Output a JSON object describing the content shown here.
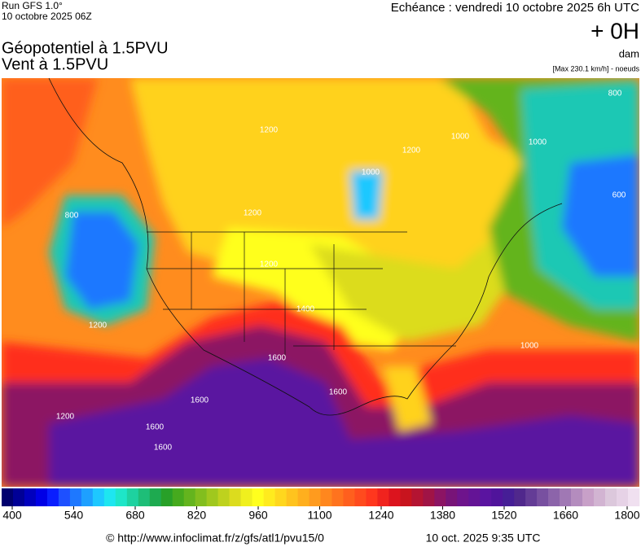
{
  "header": {
    "run": "Run GFS 1.0°",
    "date": "10 octobre 2025 06Z",
    "echeance": "Echéance : vendredi 10 octobre 2025 6h UTC",
    "lead": "+ 0H",
    "title_line1": "Géopotentiel à 1.5PVU",
    "title_line2": "Vent à 1.5PVU",
    "unit": "dam",
    "note": "[Max 230.1 km/h] - noeuds"
  },
  "map": {
    "contour_labels": [
      "1200",
      "1200",
      "1000",
      "800",
      "1000",
      "1200",
      "1200",
      "1600",
      "1600",
      "1600",
      "1600",
      "1600",
      "1200",
      "1000",
      "800",
      "600",
      "1000",
      "1200",
      "1400"
    ]
  },
  "colorbar": {
    "ticks": [
      400,
      540,
      680,
      820,
      960,
      1100,
      1240,
      1380,
      1520,
      1660,
      1800
    ],
    "colors": [
      "#00006e",
      "#000096",
      "#0000be",
      "#0000e6",
      "#0a1eff",
      "#1e50ff",
      "#1e78ff",
      "#1ea0ff",
      "#1ec8ff",
      "#1ee6f0",
      "#1ee6c8",
      "#1ed2a0",
      "#1ebe78",
      "#1eaa50",
      "#28a028",
      "#46aa1e",
      "#64b41e",
      "#82be1e",
      "#a0c81e",
      "#bed21e",
      "#dcdc1e",
      "#f0f01e",
      "#ffff1e",
      "#ffeb1e",
      "#ffd71e",
      "#ffc31e",
      "#ffaf1e",
      "#ff9b1e",
      "#ff871e",
      "#ff731e",
      "#ff5f1e",
      "#ff4b1e",
      "#ff371e",
      "#f0231e",
      "#dc141e",
      "#c8141e",
      "#b41432",
      "#a01446",
      "#8c1464",
      "#781478",
      "#6e148c",
      "#641496",
      "#5a14a0",
      "#50149b",
      "#461e96",
      "#50288c",
      "#643c96",
      "#7850a0",
      "#8c64aa",
      "#a078b4",
      "#b48cbe",
      "#c8a0c8",
      "#d2b4d2",
      "#dcc8dc",
      "#e6d2e6",
      "#f0e0f0"
    ]
  },
  "footer": {
    "url": "© http://www.infoclimat.fr/z/gfs/atl1/pvu15/0",
    "timestamp": "10 oct. 2025  9:35 UTC"
  }
}
